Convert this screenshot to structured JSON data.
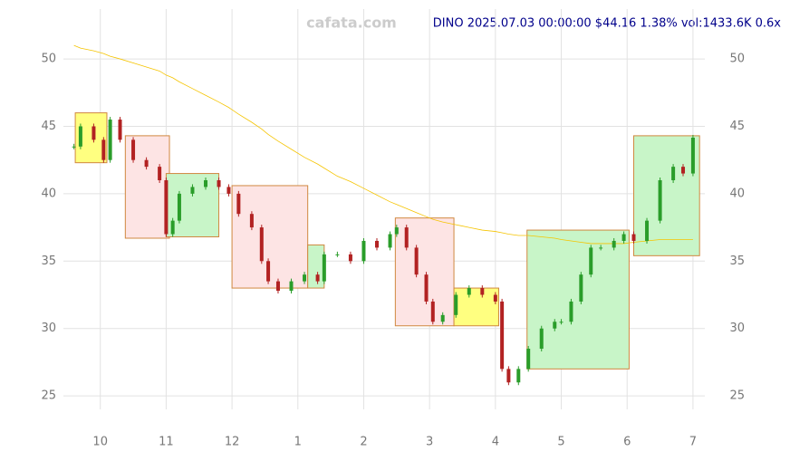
{
  "chart_data": {
    "type": "candle",
    "watermark": "cafata.com",
    "title": "DINO 2025.07.03 00:00:00 $44.16 1.38% vol:1433.6K 0.6x",
    "x": [
      9.6,
      9.7,
      9.9,
      10.05,
      10.15,
      10.3,
      10.5,
      10.7,
      10.9,
      11.0,
      11.1,
      11.2,
      11.4,
      11.6,
      11.8,
      11.95,
      12.1,
      12.3,
      12.45,
      12.55,
      12.7,
      12.9,
      13.1,
      13.3,
      13.4,
      13.6,
      13.8,
      14.0,
      14.2,
      14.4,
      14.5,
      14.65,
      14.8,
      14.95,
      15.05,
      15.2,
      15.4,
      15.6,
      15.8,
      16.0,
      16.1,
      16.2,
      16.35,
      16.5,
      16.7,
      16.9,
      17.0,
      17.15,
      17.3,
      17.45,
      17.6,
      17.8,
      17.95,
      18.1,
      18.3,
      18.5,
      18.7,
      18.85,
      19.0
    ],
    "series": [
      {
        "name": "close",
        "up_color": "#2a9d2a",
        "down_color": "#b22222",
        "values": [
          43.5,
          45,
          44,
          42.5,
          45.5,
          44,
          42.5,
          42,
          41,
          37,
          38,
          40,
          40.5,
          41,
          40.5,
          40,
          38.5,
          37.5,
          35,
          33.5,
          32.8,
          33.5,
          34,
          33.5,
          35.5,
          35.5,
          35,
          36.5,
          36,
          37,
          37.5,
          36,
          34,
          32,
          30.5,
          31,
          32.5,
          33,
          32.5,
          32,
          27,
          26,
          27,
          28.5,
          30,
          30.5,
          30.5,
          32,
          34,
          36,
          36,
          36.5,
          37,
          36.5,
          38,
          41,
          42,
          41.5,
          44.16
        ]
      },
      {
        "name": "ma",
        "color": "#f5c400",
        "values": [
          51,
          50.8,
          50.6,
          50.4,
          50.2,
          50,
          49.7,
          49.4,
          49.1,
          48.8,
          48.6,
          48.3,
          47.8,
          47.3,
          46.8,
          46.4,
          45.9,
          45.3,
          44.8,
          44.4,
          43.9,
          43.3,
          42.7,
          42.2,
          41.9,
          41.3,
          40.9,
          40.4,
          39.9,
          39.4,
          39.2,
          38.9,
          38.6,
          38.3,
          38.1,
          37.9,
          37.7,
          37.5,
          37.3,
          37.2,
          37.1,
          37,
          36.9,
          36.9,
          36.8,
          36.7,
          36.6,
          36.5,
          36.4,
          36.3,
          36.3,
          36.3,
          36.3,
          36.4,
          36.5,
          36.6,
          36.6,
          36.6,
          36.6
        ]
      }
    ],
    "boxes": [
      {
        "x": [
          9.62,
          10.1
        ],
        "y": [
          42.3,
          46
        ],
        "color": "#ffff80"
      },
      {
        "x": [
          10.38,
          11.05
        ],
        "y": [
          36.7,
          44.3
        ],
        "color": "#fde4e4"
      },
      {
        "x": [
          11.0,
          11.8
        ],
        "y": [
          36.8,
          41.5
        ],
        "color": "#c8f5c8"
      },
      {
        "x": [
          12.0,
          13.15
        ],
        "y": [
          33,
          40.6
        ],
        "color": "#fde4e4"
      },
      {
        "x": [
          13.15,
          13.4
        ],
        "y": [
          33,
          36.2
        ],
        "color": "#c8f5c8"
      },
      {
        "x": [
          14.48,
          15.37
        ],
        "y": [
          30.2,
          38.2
        ],
        "color": "#fde4e4"
      },
      {
        "x": [
          15.37,
          16.05
        ],
        "y": [
          30.2,
          33
        ],
        "color": "#ffff80"
      },
      {
        "x": [
          16.48,
          18.03
        ],
        "y": [
          27,
          37.3
        ],
        "color": "#c8f5c8"
      },
      {
        "x": [
          18.1,
          19.1
        ],
        "y": [
          35.4,
          44.3
        ],
        "color": "#c8f5c8"
      }
    ],
    "xlim": [
      9.44,
      19.18
    ],
    "xticks": [
      {
        "value": 10,
        "label": "10"
      },
      {
        "value": 11,
        "label": "11"
      },
      {
        "value": 12,
        "label": "12"
      },
      {
        "value": 13,
        "label": "1"
      },
      {
        "value": 14,
        "label": "2"
      },
      {
        "value": 15,
        "label": "3"
      },
      {
        "value": 16,
        "label": "4"
      },
      {
        "value": 17,
        "label": "5"
      },
      {
        "value": 18,
        "label": "6"
      },
      {
        "value": 19,
        "label": "7"
      }
    ],
    "ylim": [
      24,
      53.7
    ],
    "yticks": [
      25,
      30,
      35,
      40,
      45,
      50
    ],
    "grid": true
  }
}
